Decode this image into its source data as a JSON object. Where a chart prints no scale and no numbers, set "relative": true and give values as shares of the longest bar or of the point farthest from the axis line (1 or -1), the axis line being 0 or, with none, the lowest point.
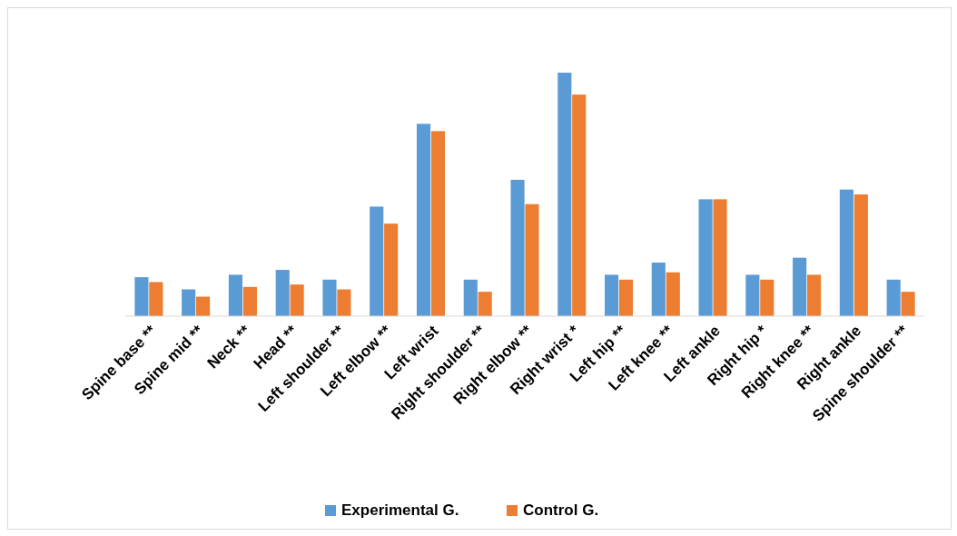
{
  "chart_data": {
    "type": "bar",
    "relative": true,
    "legend": "bottom",
    "categories": [
      "Spine base **",
      "Spine mid **",
      "Neck **",
      "Head **",
      "Left shoulder **",
      "Left elbow **",
      "Left wrist",
      "Right shoulder **",
      "Right elbow **",
      "Right wrist *",
      "Left hip **",
      "Left knee **",
      "Left ankle",
      "Right hip *",
      "Right knee **",
      "Right ankle",
      "Spine shoulder **"
    ],
    "series": [
      {
        "name": "Experimental G.",
        "color": "#5b9bd5",
        "values": [
          0.16,
          0.11,
          0.17,
          0.19,
          0.15,
          0.45,
          0.79,
          0.15,
          0.56,
          1,
          0.17,
          0.22,
          0.48,
          0.17,
          0.24,
          0.52,
          0.15
        ]
      },
      {
        "name": "Control G.",
        "color": "#ed7d31",
        "values": [
          0.14,
          0.08,
          0.12,
          0.13,
          0.11,
          0.38,
          0.76,
          0.1,
          0.46,
          0.91,
          0.15,
          0.18,
          0.48,
          0.15,
          0.17,
          0.5,
          0.1
        ]
      }
    ]
  }
}
